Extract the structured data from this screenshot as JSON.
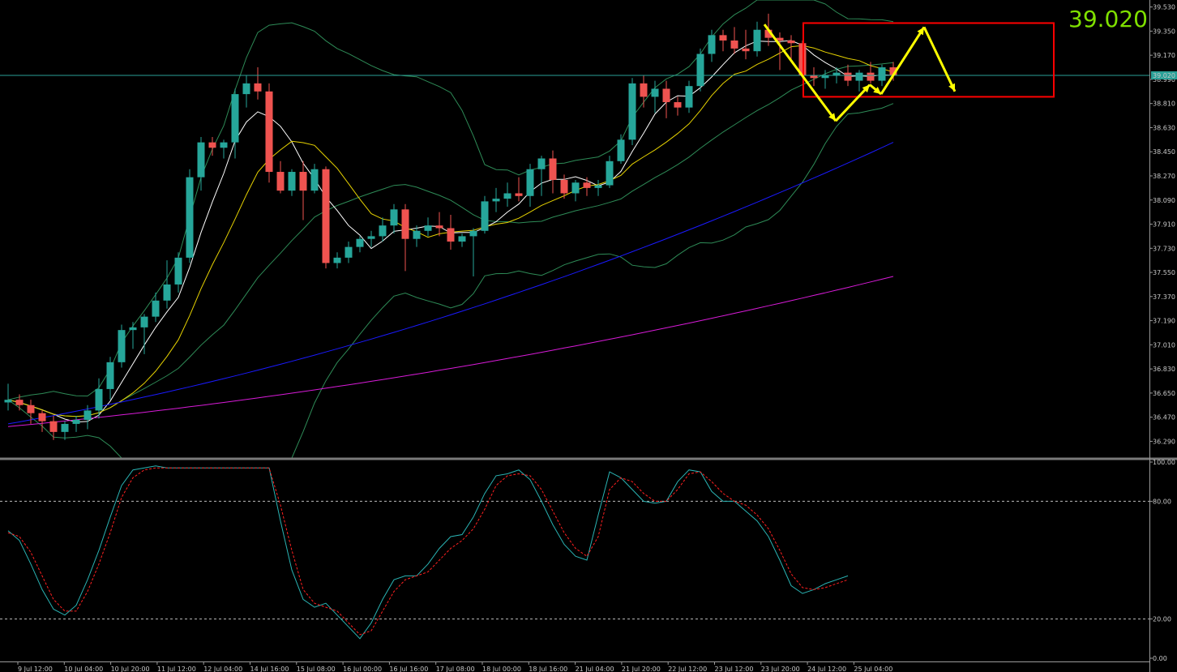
{
  "current_price": "39.020",
  "current_price_tag": "39.020",
  "colors": {
    "background": "#000000",
    "bull": "#26a69a",
    "bear": "#ef5350",
    "bb": "#2e8b57",
    "ma_fast": "#ffffff",
    "ma_slow": "#e6d200",
    "ma_blue": "#1a1aff",
    "ma_magenta": "#d81bd8",
    "price_line": "#2aa198",
    "stoch_k": "#2ab3b3",
    "stoch_d": "#ff2020",
    "box": "#ff0000",
    "arrows": "#ffff00",
    "price_text": "#7fe000"
  },
  "chart_data": [
    {
      "type": "candlestick",
      "title": "",
      "ylim": [
        36.13,
        39.62
      ],
      "y_ticks": [
        "39.530",
        "39.350",
        "39.170",
        "38.990",
        "38.810",
        "38.630",
        "38.450",
        "38.270",
        "38.090",
        "37.910",
        "37.730",
        "37.550",
        "37.370",
        "37.190",
        "37.010",
        "36.830",
        "36.650",
        "36.470",
        "36.290"
      ],
      "x_ticks": [
        "9 Jul 12:00",
        "10 Jul 04:00",
        "10 Jul 20:00",
        "11 Jul 12:00",
        "12 Jul 04:00",
        "14 Jul 16:00",
        "15 Jul 08:00",
        "16 Jul 00:00",
        "16 Jul 16:00",
        "17 Jul 08:00",
        "18 Jul 00:00",
        "18 Jul 16:00",
        "21 Jul 04:00",
        "21 Jul 20:00",
        "22 Jul 12:00",
        "23 Jul 12:00",
        "23 Jul 20:00",
        "24 Jul 12:00",
        "25 Jul 04:00"
      ],
      "last_price": 39.02,
      "candles": [
        [
          36.58,
          36.72,
          36.52,
          36.6
        ],
        [
          36.6,
          36.64,
          36.52,
          36.56
        ],
        [
          36.56,
          36.6,
          36.42,
          36.5
        ],
        [
          36.5,
          36.52,
          36.36,
          36.44
        ],
        [
          36.44,
          36.48,
          36.3,
          36.36
        ],
        [
          36.36,
          36.44,
          36.3,
          36.42
        ],
        [
          36.42,
          36.48,
          36.36,
          36.45
        ],
        [
          36.45,
          36.56,
          36.38,
          36.52
        ],
        [
          36.52,
          36.76,
          36.46,
          36.68
        ],
        [
          36.68,
          36.92,
          36.6,
          36.88
        ],
        [
          36.88,
          37.16,
          36.84,
          37.12
        ],
        [
          37.12,
          37.18,
          36.98,
          37.14
        ],
        [
          37.14,
          37.24,
          36.94,
          37.22
        ],
        [
          37.22,
          37.4,
          37.18,
          37.34
        ],
        [
          37.34,
          37.64,
          37.28,
          37.46
        ],
        [
          37.46,
          37.7,
          37.4,
          37.66
        ],
        [
          37.66,
          38.32,
          37.62,
          38.26
        ],
        [
          38.26,
          38.56,
          38.16,
          38.52
        ],
        [
          38.52,
          38.56,
          38.42,
          38.48
        ],
        [
          38.48,
          38.54,
          38.4,
          38.52
        ],
        [
          38.52,
          38.92,
          38.4,
          38.88
        ],
        [
          38.88,
          39.02,
          38.78,
          38.96
        ],
        [
          38.96,
          39.08,
          38.84,
          38.9
        ],
        [
          38.9,
          38.96,
          38.22,
          38.3
        ],
        [
          38.3,
          38.38,
          38.14,
          38.16
        ],
        [
          38.16,
          38.32,
          38.12,
          38.3
        ],
        [
          38.3,
          38.38,
          37.94,
          38.16
        ],
        [
          38.16,
          38.36,
          38.14,
          38.32
        ],
        [
          38.32,
          38.34,
          37.58,
          37.62
        ],
        [
          37.62,
          37.7,
          37.58,
          37.66
        ],
        [
          37.66,
          37.78,
          37.62,
          37.74
        ],
        [
          37.74,
          37.82,
          37.7,
          37.8
        ],
        [
          37.8,
          37.86,
          37.74,
          37.82
        ],
        [
          37.82,
          37.96,
          37.78,
          37.9
        ],
        [
          37.9,
          38.06,
          37.84,
          38.02
        ],
        [
          38.02,
          38.06,
          37.56,
          37.8
        ],
        [
          37.8,
          37.9,
          37.74,
          37.86
        ],
        [
          37.86,
          37.96,
          37.82,
          37.9
        ],
        [
          37.9,
          38.0,
          37.82,
          37.88
        ],
        [
          37.88,
          37.98,
          37.72,
          37.78
        ],
        [
          37.78,
          37.84,
          37.74,
          37.82
        ],
        [
          37.82,
          37.88,
          37.52,
          37.86
        ],
        [
          37.86,
          38.12,
          37.84,
          38.08
        ],
        [
          38.08,
          38.18,
          38.0,
          38.1
        ],
        [
          38.1,
          38.22,
          38.04,
          38.14
        ],
        [
          38.14,
          38.26,
          38.08,
          38.12
        ],
        [
          38.12,
          38.36,
          38.04,
          38.32
        ],
        [
          38.32,
          38.42,
          38.12,
          38.4
        ],
        [
          38.4,
          38.46,
          38.14,
          38.24
        ],
        [
          38.24,
          38.28,
          38.1,
          38.14
        ],
        [
          38.14,
          38.24,
          38.08,
          38.22
        ],
        [
          38.22,
          38.26,
          38.12,
          38.18
        ],
        [
          38.18,
          38.24,
          38.12,
          38.2
        ],
        [
          38.2,
          38.42,
          38.18,
          38.38
        ],
        [
          38.38,
          38.58,
          38.36,
          38.54
        ],
        [
          38.54,
          39.0,
          38.5,
          38.96
        ],
        [
          38.96,
          39.02,
          38.78,
          38.86
        ],
        [
          38.86,
          38.98,
          38.74,
          38.92
        ],
        [
          38.92,
          38.98,
          38.7,
          38.82
        ],
        [
          38.82,
          38.86,
          38.72,
          38.78
        ],
        [
          38.78,
          38.98,
          38.74,
          38.94
        ],
        [
          38.94,
          39.22,
          38.9,
          39.18
        ],
        [
          39.18,
          39.36,
          39.12,
          39.32
        ],
        [
          39.32,
          39.36,
          39.2,
          39.28
        ],
        [
          39.28,
          39.38,
          39.18,
          39.22
        ],
        [
          39.22,
          39.36,
          39.14,
          39.2
        ],
        [
          39.2,
          39.42,
          39.16,
          39.36
        ],
        [
          39.36,
          39.48,
          39.24,
          39.3
        ],
        [
          39.3,
          39.34,
          39.06,
          39.28
        ],
        [
          39.28,
          39.32,
          39.14,
          39.26
        ],
        [
          39.26,
          39.28,
          39.0,
          39.02
        ],
        [
          39.02,
          39.08,
          38.94,
          39.0
        ],
        [
          39.0,
          39.06,
          38.92,
          39.02
        ],
        [
          39.02,
          39.08,
          38.96,
          39.04
        ],
        [
          39.04,
          39.1,
          38.94,
          38.98
        ],
        [
          38.98,
          39.06,
          38.9,
          39.04
        ],
        [
          39.04,
          39.12,
          38.96,
          38.98
        ],
        [
          38.98,
          39.1,
          38.94,
          39.08
        ],
        [
          39.08,
          39.12,
          38.98,
          39.02
        ]
      ]
    },
    {
      "type": "line",
      "title": "",
      "ylim": [
        0,
        100
      ],
      "y_ticks": [
        "100.00",
        "80.00",
        "20.00",
        "0.00"
      ],
      "levels": [
        80,
        20
      ],
      "series": [
        {
          "name": "",
          "values": [
            65,
            60,
            48,
            35,
            25,
            22,
            27,
            40,
            55,
            72,
            88,
            96,
            97,
            98,
            97,
            97,
            97,
            97,
            97,
            97,
            97,
            97,
            97,
            97,
            70,
            45,
            30,
            26,
            28,
            22,
            16,
            10,
            18,
            30,
            40,
            42,
            42,
            48,
            56,
            62,
            63,
            72,
            84,
            93,
            94,
            96,
            91,
            80,
            68,
            58,
            52,
            50,
            73,
            95,
            92,
            86,
            80,
            79,
            80,
            90,
            96,
            95,
            85,
            80,
            80,
            75,
            70,
            62,
            50,
            37,
            33,
            35,
            38,
            40,
            42
          ]
        },
        {
          "name": "",
          "values": [
            64,
            62,
            54,
            42,
            30,
            24,
            24,
            34,
            48,
            64,
            82,
            92,
            96,
            97,
            97,
            97,
            97,
            97,
            97,
            97,
            97,
            97,
            97,
            97,
            78,
            55,
            35,
            28,
            26,
            24,
            18,
            12,
            14,
            24,
            34,
            40,
            42,
            44,
            50,
            56,
            60,
            66,
            76,
            88,
            93,
            94,
            93,
            86,
            75,
            64,
            56,
            52,
            62,
            86,
            92,
            90,
            84,
            80,
            80,
            86,
            94,
            95,
            90,
            84,
            80,
            78,
            73,
            66,
            55,
            43,
            36,
            35,
            36,
            38,
            40
          ]
        }
      ]
    }
  ],
  "moving_averages": {
    "blue": {
      "start": 36.42,
      "end": 38.52
    },
    "magenta": {
      "start": 36.4,
      "end": 37.52
    }
  },
  "annotation": {
    "box": {
      "y_top": 39.41,
      "y_bottom": 38.86
    },
    "path_prices": [
      39.4,
      38.68,
      38.95,
      38.88,
      39.38,
      38.9
    ]
  }
}
